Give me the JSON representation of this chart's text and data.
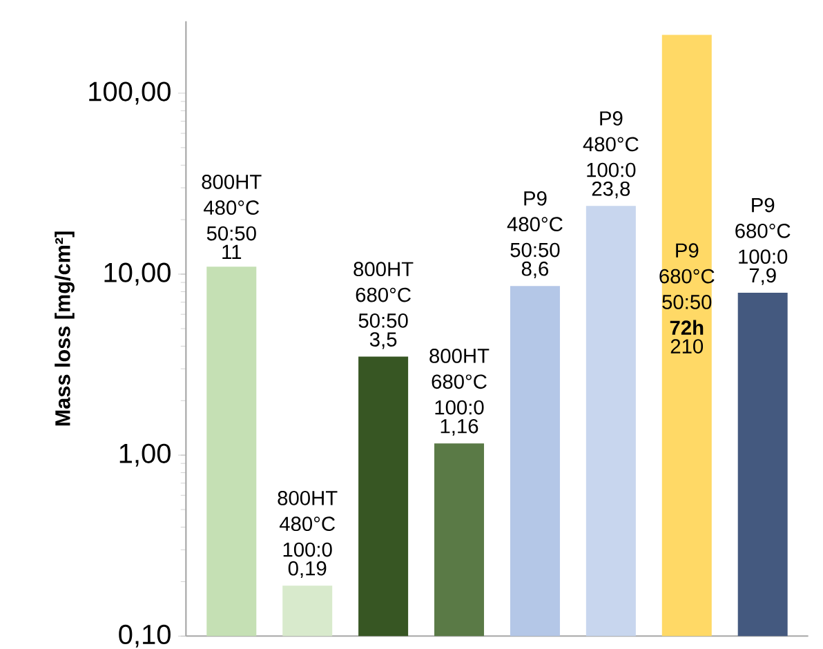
{
  "chart_data": {
    "type": "bar",
    "ylabel": "Mass loss [mg/cm²]",
    "log": "y",
    "categories": [
      null,
      null,
      null,
      null,
      null,
      null,
      null,
      null
    ],
    "values": [
      11,
      0.19,
      3.5,
      1.16,
      8.6,
      23.8,
      210,
      7.9
    ],
    "value_labels": [
      "11",
      "0,19",
      "3,5",
      "1,16",
      "8,6",
      "23,8",
      "210",
      "7,9"
    ],
    "colors": [
      "#c5e0b4",
      "#d8eacc",
      "#375623",
      "#5a7a46",
      "#b4c7e7",
      "#c8d6ee",
      "#ffd966",
      "#44597f"
    ],
    "annotations": [
      "800HT 480°C 50:50",
      "800HT 480°C 100:0",
      "800HT 680°C 50:50",
      "800HT 680°C 100:0",
      "P9 480°C 50:50",
      "P9 480°C 100:0",
      "P9 680°C 50:50 **72h**",
      "P9 680°C 100:0"
    ],
    "ylim": [
      0.1,
      250
    ],
    "yticks": [
      {
        "value": 0.1,
        "label": "0,10"
      },
      {
        "value": 1,
        "label": "1,00"
      },
      {
        "value": 10,
        "label": "10,00"
      },
      {
        "value": 100,
        "label": "100,00"
      }
    ],
    "grid": false
  }
}
